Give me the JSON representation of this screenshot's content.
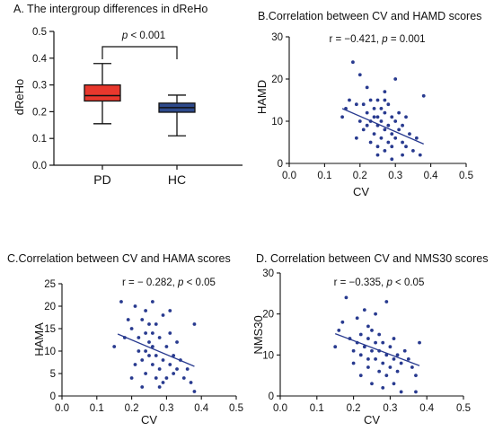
{
  "chart_data": [
    {
      "type": "box",
      "title": "A. The intergroup differences in dReHo",
      "xlabel": "",
      "ylabel": "dReHo",
      "ylim": [
        0.0,
        0.5
      ],
      "yticks": [
        "0.0",
        "0.1",
        "0.2",
        "0.3",
        "0.4",
        "0.5"
      ],
      "categories": [
        "PD",
        "HC"
      ],
      "boxes": [
        {
          "name": "PD",
          "min": 0.155,
          "q1": 0.24,
          "median": 0.26,
          "q3": 0.3,
          "max": 0.38,
          "color": "#e8382d"
        },
        {
          "name": "HC",
          "min": 0.11,
          "q1": 0.198,
          "median": 0.215,
          "q3": 0.232,
          "max": 0.262,
          "color": "#2e4a8c"
        }
      ],
      "annotation": {
        "prefix": "p",
        "text": " < 0.001"
      }
    },
    {
      "type": "scatter",
      "title": "B.Correlation between CV and HAMD scores",
      "xlabel": "CV",
      "ylabel": "HAMD",
      "xlim": [
        0.0,
        0.5
      ],
      "ylim": [
        0,
        30
      ],
      "xticks": [
        "0.0",
        "0.1",
        "0.2",
        "0.3",
        "0.4",
        "0.5"
      ],
      "yticks": [
        "0",
        "10",
        "20",
        "30"
      ],
      "annotation": {
        "r_text": "r = −0.421, ",
        "p_italic": "p",
        "p_text": " = 0.001"
      },
      "fit": {
        "x": [
          0.15,
          0.38
        ],
        "y": [
          13.0,
          4.6
        ]
      },
      "points": [
        [
          0.15,
          11
        ],
        [
          0.16,
          13
        ],
        [
          0.17,
          15
        ],
        [
          0.18,
          24
        ],
        [
          0.19,
          6
        ],
        [
          0.2,
          21
        ],
        [
          0.2,
          10
        ],
        [
          0.21,
          14
        ],
        [
          0.21,
          8
        ],
        [
          0.22,
          12
        ],
        [
          0.22,
          18
        ],
        [
          0.22,
          9
        ],
        [
          0.23,
          15
        ],
        [
          0.23,
          5
        ],
        [
          0.24,
          11
        ],
        [
          0.24,
          7
        ],
        [
          0.24,
          13
        ],
        [
          0.25,
          9
        ],
        [
          0.25,
          15
        ],
        [
          0.25,
          4
        ],
        [
          0.25,
          11
        ],
        [
          0.26,
          13
        ],
        [
          0.26,
          10
        ],
        [
          0.26,
          6
        ],
        [
          0.27,
          15
        ],
        [
          0.27,
          8
        ],
        [
          0.27,
          12
        ],
        [
          0.27,
          3
        ],
        [
          0.28,
          9
        ],
        [
          0.28,
          5
        ],
        [
          0.28,
          14
        ],
        [
          0.29,
          7
        ],
        [
          0.29,
          11
        ],
        [
          0.29,
          4
        ],
        [
          0.3,
          20
        ],
        [
          0.3,
          10
        ],
        [
          0.3,
          6
        ],
        [
          0.31,
          8
        ],
        [
          0.31,
          12
        ],
        [
          0.32,
          5
        ],
        [
          0.32,
          9
        ],
        [
          0.33,
          11
        ],
        [
          0.33,
          4
        ],
        [
          0.34,
          7
        ],
        [
          0.35,
          3
        ],
        [
          0.36,
          6
        ],
        [
          0.37,
          2
        ],
        [
          0.38,
          16
        ],
        [
          0.25,
          2
        ],
        [
          0.29,
          1
        ],
        [
          0.32,
          2
        ],
        [
          0.19,
          14
        ],
        [
          0.23,
          10
        ],
        [
          0.27,
          17
        ]
      ]
    },
    {
      "type": "scatter",
      "title": "C.Correlation between CV and HAMA scores",
      "xlabel": "CV",
      "ylabel": "HAMA",
      "xlim": [
        0.0,
        0.5
      ],
      "ylim": [
        0,
        25
      ],
      "xticks": [
        "0.0",
        "0.1",
        "0.2",
        "0.3",
        "0.4",
        "0.5"
      ],
      "yticks": [
        "0",
        "5",
        "10",
        "15",
        "20",
        "25"
      ],
      "annotation": {
        "r_text": "r = − 0.282, ",
        "p_italic": "p",
        "p_text": " < 0.05"
      },
      "fit": {
        "x": [
          0.16,
          0.38
        ],
        "y": [
          13.8,
          6.6
        ]
      },
      "points": [
        [
          0.15,
          11
        ],
        [
          0.17,
          21
        ],
        [
          0.18,
          13
        ],
        [
          0.19,
          17
        ],
        [
          0.2,
          15
        ],
        [
          0.21,
          20
        ],
        [
          0.21,
          7
        ],
        [
          0.22,
          10
        ],
        [
          0.22,
          13
        ],
        [
          0.23,
          8
        ],
        [
          0.23,
          17
        ],
        [
          0.24,
          19
        ],
        [
          0.24,
          10
        ],
        [
          0.24,
          5
        ],
        [
          0.25,
          12
        ],
        [
          0.25,
          16
        ],
        [
          0.25,
          9
        ],
        [
          0.26,
          14
        ],
        [
          0.26,
          7
        ],
        [
          0.26,
          11
        ],
        [
          0.27,
          16
        ],
        [
          0.27,
          4
        ],
        [
          0.27,
          9
        ],
        [
          0.28,
          13
        ],
        [
          0.28,
          6
        ],
        [
          0.28,
          2
        ],
        [
          0.29,
          8
        ],
        [
          0.29,
          18
        ],
        [
          0.3,
          11
        ],
        [
          0.3,
          4
        ],
        [
          0.31,
          14
        ],
        [
          0.31,
          7
        ],
        [
          0.31,
          19
        ],
        [
          0.32,
          9
        ],
        [
          0.32,
          5
        ],
        [
          0.33,
          12
        ],
        [
          0.33,
          6
        ],
        [
          0.34,
          8
        ],
        [
          0.35,
          4
        ],
        [
          0.36,
          6
        ],
        [
          0.37,
          3
        ],
        [
          0.38,
          1
        ],
        [
          0.38,
          16
        ],
        [
          0.26,
          21
        ],
        [
          0.2,
          4
        ],
        [
          0.23,
          2
        ],
        [
          0.29,
          3
        ],
        [
          0.24,
          14
        ]
      ]
    },
    {
      "type": "scatter",
      "title": "D. Correlation between CV and NMS30 scores",
      "xlabel": "CV",
      "ylabel": "NMS30",
      "xlim": [
        0.0,
        0.5
      ],
      "ylim": [
        0,
        30
      ],
      "xticks": [
        "0.0",
        "0.1",
        "0.2",
        "0.3",
        "0.4",
        "0.5"
      ],
      "yticks": [
        "0",
        "10",
        "20",
        "30"
      ],
      "annotation": {
        "r_text": "r = −0.335, ",
        "p_italic": "p",
        "p_text": " < 0.05"
      },
      "fit": {
        "x": [
          0.15,
          0.38
        ],
        "y": [
          15.2,
          7.4
        ]
      },
      "points": [
        [
          0.15,
          12
        ],
        [
          0.16,
          16
        ],
        [
          0.17,
          18
        ],
        [
          0.18,
          24
        ],
        [
          0.19,
          14
        ],
        [
          0.2,
          11
        ],
        [
          0.2,
          8
        ],
        [
          0.21,
          13
        ],
        [
          0.21,
          19
        ],
        [
          0.22,
          15
        ],
        [
          0.22,
          10
        ],
        [
          0.22,
          5
        ],
        [
          0.23,
          12
        ],
        [
          0.23,
          21
        ],
        [
          0.24,
          9
        ],
        [
          0.24,
          14
        ],
        [
          0.24,
          7
        ],
        [
          0.25,
          16
        ],
        [
          0.25,
          11
        ],
        [
          0.25,
          3
        ],
        [
          0.26,
          13
        ],
        [
          0.26,
          20
        ],
        [
          0.26,
          9
        ],
        [
          0.27,
          15
        ],
        [
          0.27,
          6
        ],
        [
          0.27,
          11
        ],
        [
          0.28,
          13
        ],
        [
          0.28,
          8
        ],
        [
          0.28,
          2
        ],
        [
          0.29,
          10
        ],
        [
          0.29,
          23
        ],
        [
          0.29,
          5
        ],
        [
          0.3,
          12
        ],
        [
          0.3,
          7
        ],
        [
          0.31,
          14
        ],
        [
          0.31,
          9
        ],
        [
          0.31,
          3
        ],
        [
          0.32,
          10
        ],
        [
          0.32,
          6
        ],
        [
          0.33,
          8
        ],
        [
          0.33,
          1
        ],
        [
          0.34,
          11
        ],
        [
          0.35,
          9
        ],
        [
          0.36,
          7
        ],
        [
          0.37,
          5
        ],
        [
          0.38,
          13
        ],
        [
          0.37,
          1
        ],
        [
          0.24,
          17
        ]
      ]
    }
  ]
}
